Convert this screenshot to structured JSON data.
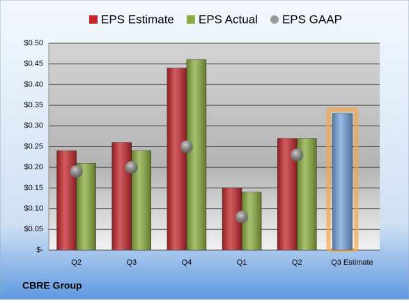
{
  "chart_data": {
    "type": "bar",
    "footer": "CBRE Group",
    "categories": [
      "Q2",
      "Q3",
      "Q4",
      "Q1",
      "Q2",
      "Q3 Estimate"
    ],
    "series": [
      {
        "name": "EPS Estimate",
        "color": "#c3262b",
        "values": [
          0.24,
          0.26,
          0.44,
          0.15,
          0.27,
          0.33
        ]
      },
      {
        "name": "EPS Actual",
        "color": "#8aab3e",
        "values": [
          0.21,
          0.24,
          0.46,
          0.14,
          0.27,
          null
        ]
      },
      {
        "name": "EPS GAAP",
        "color": "#9a9a9a",
        "marker": "circle",
        "values": [
          0.19,
          0.2,
          0.25,
          0.08,
          0.23,
          null
        ]
      }
    ],
    "highlight": {
      "index": 5,
      "color": "#76a3dc",
      "glow": "#f7a648"
    },
    "ylim": [
      0,
      0.5
    ],
    "yticks": [
      {
        "value": 0,
        "label": "$-"
      },
      {
        "value": 0.05,
        "label": "$0.05"
      },
      {
        "value": 0.1,
        "label": "$0.10"
      },
      {
        "value": 0.15,
        "label": "$0.15"
      },
      {
        "value": 0.2,
        "label": "$0.20"
      },
      {
        "value": 0.25,
        "label": "$0.25"
      },
      {
        "value": 0.3,
        "label": "$0.30"
      },
      {
        "value": 0.35,
        "label": "$0.35"
      },
      {
        "value": 0.4,
        "label": "$0.40"
      },
      {
        "value": 0.45,
        "label": "$0.45"
      },
      {
        "value": 0.5,
        "label": "$0.50"
      }
    ],
    "grid": true
  }
}
